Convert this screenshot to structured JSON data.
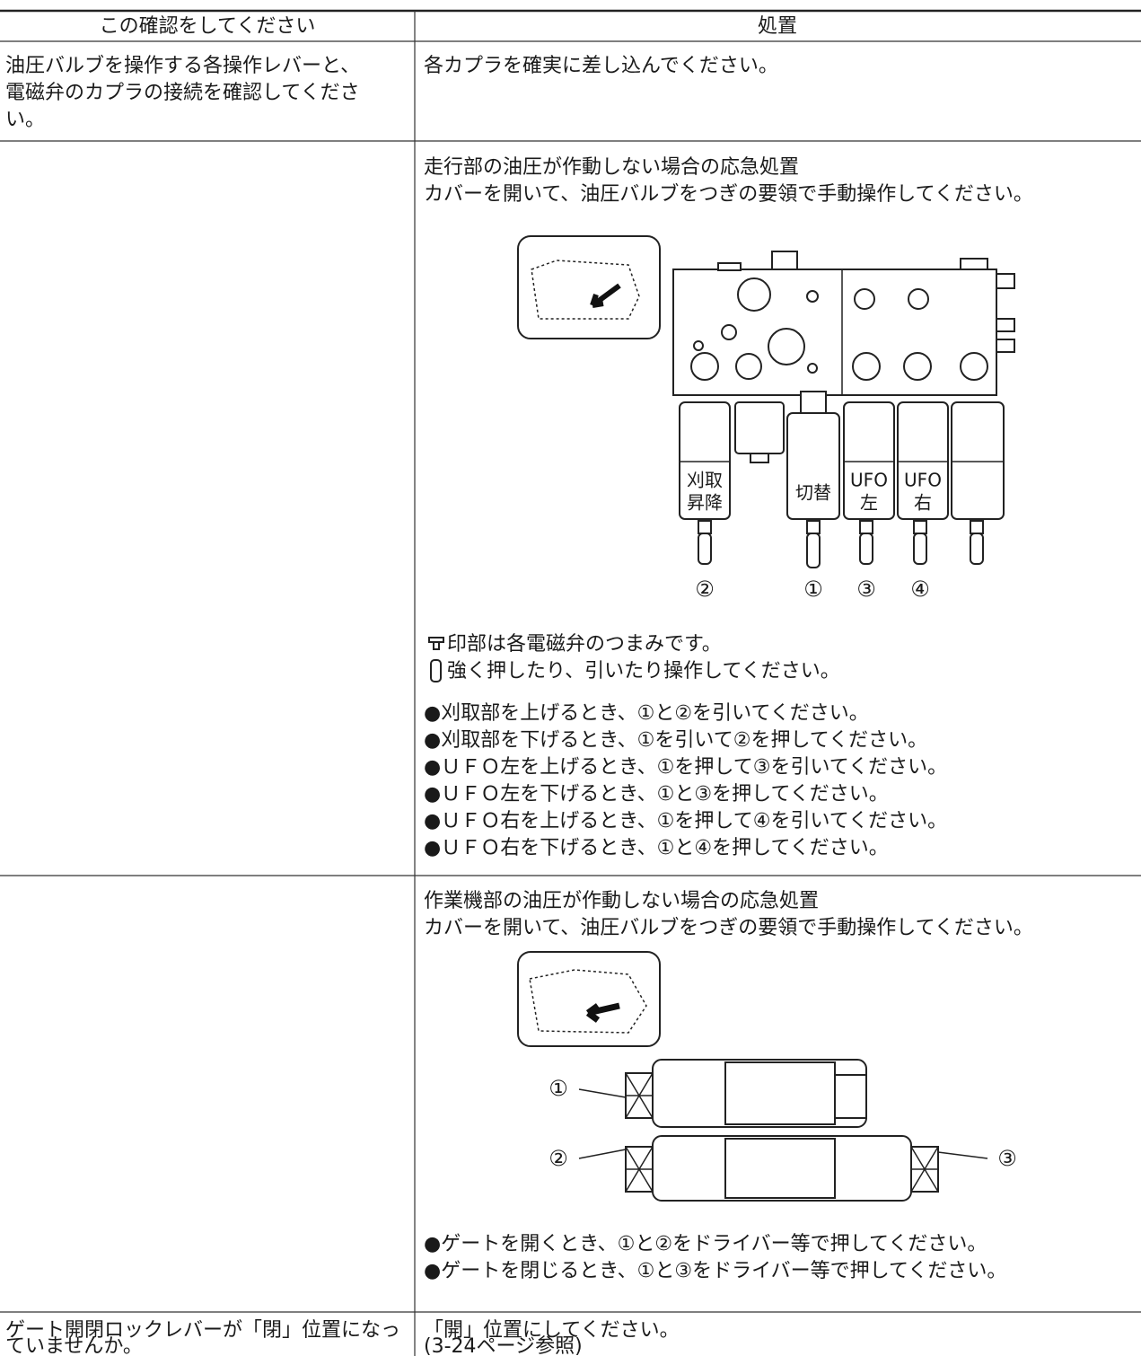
{
  "table": {
    "header": [
      "この確認をしてください",
      "処置"
    ],
    "rows": [
      {
        "check": [
          "油圧バルブを操作する各操作レバーと、",
          "電磁弁のカプラの接続を確認してくださ",
          "い。"
        ],
        "action": [
          "各カプラを確実に差し込んでください。"
        ]
      },
      {
        "action": [
          "走行部の油圧が作動しない場合の応急処置",
          "カバーを開いて、油圧バルブをつぎの要領で手動操作してください。"
        ],
        "figure": {
          "labels": [
            [
              "刈取",
              "昇降"
            ],
            [
              "切替"
            ],
            [
              "UFO",
              "左"
            ],
            [
              "UFO",
              "右"
            ]
          ],
          "numbers": [
            "②",
            "①",
            "③",
            "④"
          ]
        },
        "notes": [
          "印部は各電磁弁のつまみです。",
          "強く押したり、引いたり操作してください。"
        ],
        "steps": [
          "●刈取部を上げるとき、①と②を引いてください。",
          "●刈取部を下げるとき、①を引いて②を押してください。",
          "●ＵＦＯ左を上げるとき、①を押して③を引いてください。",
          "●ＵＦＯ左を下げるとき、①と③を押してください。",
          "●ＵＦＯ右を上げるとき、①を押して④を引いてください。",
          "●ＵＦＯ右を下げるとき、①と④を押してください。"
        ]
      },
      {
        "action": [
          "作業機部の油圧が作動しない場合の応急処置",
          "カバーを開いて、油圧バルブをつぎの要領で手動操作してください。"
        ],
        "figure": {
          "numbers": [
            "①",
            "②",
            "③"
          ]
        },
        "steps": [
          "●ゲートを開くとき、①と②をドライバー等で押してください。",
          "●ゲートを閉じるとき、①と③をドライバー等で押してください。"
        ]
      },
      {
        "check": [
          "ゲート開閉ロックレバーが「閉」位置になっ",
          "ていませんか。"
        ],
        "action": [
          "「開」位置にしてください。",
          "(3-24ページ参照)"
        ]
      }
    ]
  }
}
